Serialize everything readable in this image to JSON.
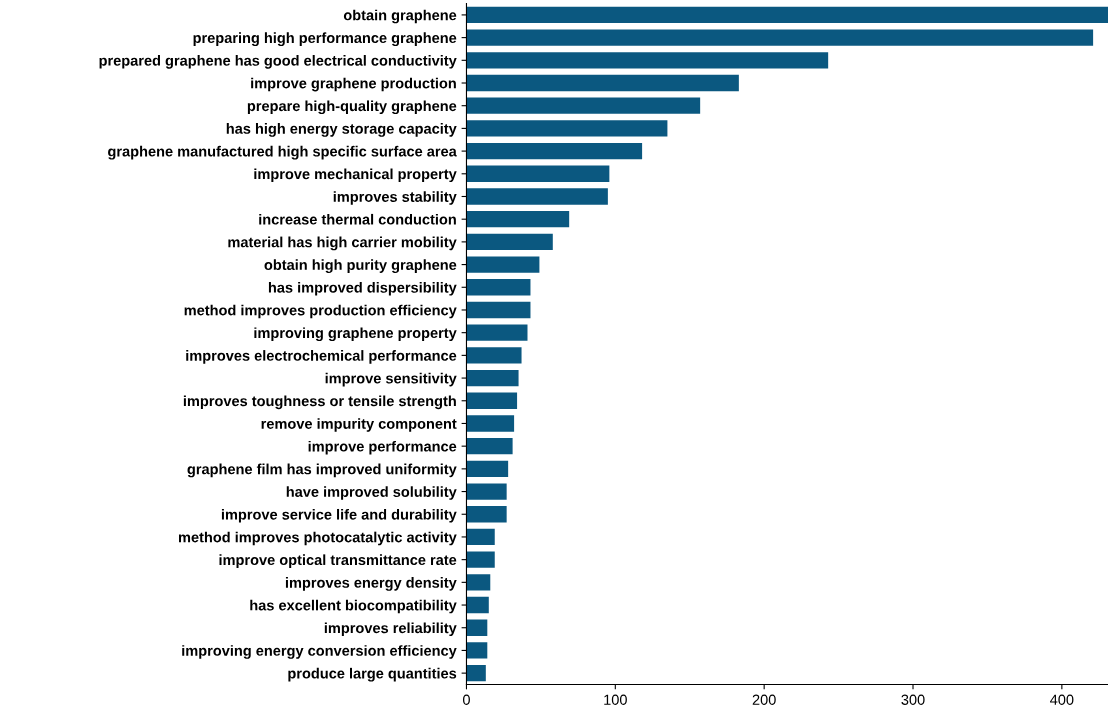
{
  "chart_data": {
    "type": "bar",
    "orientation": "horizontal",
    "color": "#0b5880",
    "categories": [
      "obtain graphene",
      "preparing high performance graphene",
      "prepared graphene has good electrical conductivity",
      "improve graphene production",
      "prepare high-quality graphene",
      "has high energy storage capacity",
      "graphene manufactured high specific surface area",
      "improve mechanical property",
      "improves stability",
      "increase thermal conduction",
      "material has high carrier mobility",
      "obtain high purity graphene",
      "has improved dispersibility",
      "method improves production efficiency",
      "improving graphene property",
      "improves electrochemical performance",
      "improve sensitivity",
      "improves toughness or tensile strength",
      "remove impurity component",
      "improve performance",
      "graphene film has improved uniformity",
      "have improved solubility",
      "improve service life and durability",
      "method improves photocatalytic activity",
      "improve optical transmittance rate",
      "improves energy density",
      "has excellent biocompatibility",
      "improves reliability",
      "improving energy conversion efficiency",
      "produce large quantities"
    ],
    "values": [
      431,
      421,
      243,
      183,
      157,
      135,
      118,
      96,
      95,
      69,
      58,
      49,
      43,
      43,
      41,
      37,
      35,
      34,
      32,
      31,
      28,
      27,
      27,
      19,
      19,
      16,
      15,
      14,
      14,
      13
    ],
    "xlim": [
      0,
      431
    ],
    "xticks": [
      0,
      100,
      200,
      300,
      400
    ],
    "grid": false,
    "legend": false
  }
}
